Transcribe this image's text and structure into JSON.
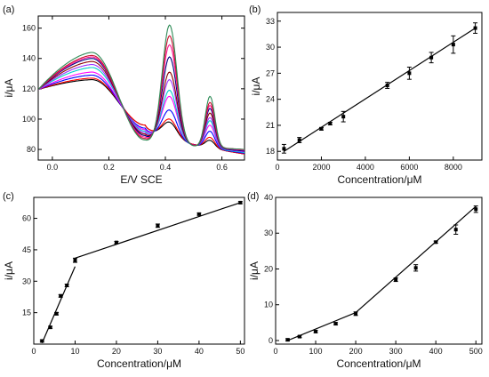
{
  "chart_data": [
    {
      "type": "line",
      "panel_label": "(a)",
      "xlabel": "E/V SCE",
      "ylabel": "i/μA",
      "xlim": [
        -0.05,
        0.68
      ],
      "ylim": [
        73,
        168
      ],
      "xticks": [
        "0.0",
        "0.2",
        "0.4",
        "0.6"
      ],
      "yticks": [
        "80",
        "100",
        "120",
        "140",
        "160"
      ],
      "series": [
        {
          "color": "#000000",
          "peak1": 126,
          "valley1": 96,
          "peak2": 98,
          "valley2": 80,
          "peak3": 86,
          "end": 77
        },
        {
          "color": "#ff0000",
          "peak1": 127,
          "valley1": 96,
          "peak2": 100,
          "valley2": 80.5,
          "peak3": 88,
          "end": 77
        },
        {
          "color": "#0000ff",
          "peak1": 129,
          "valley1": 94,
          "peak2": 106,
          "valley2": 81,
          "peak3": 92,
          "end": 77.5
        },
        {
          "color": "#ff00ff",
          "peak1": 131,
          "valley1": 93,
          "peak2": 115,
          "valley2": 81.5,
          "peak3": 96,
          "end": 78
        },
        {
          "color": "#00cccc",
          "peak1": 134,
          "valley1": 92,
          "peak2": 119,
          "valley2": 82,
          "peak3": 99,
          "end": 78
        },
        {
          "color": "#9b30ff",
          "peak1": 136,
          "valley1": 91,
          "peak2": 126,
          "valley2": 82.5,
          "peak3": 101,
          "end": 78.5
        },
        {
          "color": "#8b0000",
          "peak1": 138,
          "valley1": 90,
          "peak2": 131,
          "valley2": 83,
          "peak3": 104,
          "end": 79
        },
        {
          "color": "#000080",
          "peak1": 140,
          "valley1": 89,
          "peak2": 141,
          "valley2": 83.5,
          "peak3": 107,
          "end": 79
        },
        {
          "color": "#ff1493",
          "peak1": 141,
          "valley1": 88,
          "peak2": 149,
          "valley2": 84,
          "peak3": 109,
          "end": 79.5
        },
        {
          "color": "#c8102e",
          "peak1": 142,
          "valley1": 87,
          "peak2": 155,
          "valley2": 84,
          "peak3": 111,
          "end": 80
        },
        {
          "color": "#2e8b57",
          "peak1": 144,
          "valley1": 86,
          "peak2": 162,
          "valley2": 84.5,
          "peak3": 115,
          "end": 80
        }
      ]
    },
    {
      "type": "scatter",
      "panel_label": "(b)",
      "xlabel": "Concentration/μM",
      "ylabel": "i/μA",
      "xlim": [
        0,
        9300
      ],
      "ylim": [
        17,
        34
      ],
      "xticks": [
        "0",
        "2000",
        "4000",
        "6000",
        "8000"
      ],
      "yticks": [
        "18",
        "21",
        "24",
        "27",
        "30",
        "33"
      ],
      "points": [
        {
          "x": 300,
          "y": 18.3,
          "err": 0.5
        },
        {
          "x": 1000,
          "y": 19.3,
          "err": 0.3
        },
        {
          "x": 2000,
          "y": 20.6,
          "err": 0.15
        },
        {
          "x": 2400,
          "y": 21.2,
          "err": 0.15
        },
        {
          "x": 3000,
          "y": 22.0,
          "err": 0.6
        },
        {
          "x": 5000,
          "y": 25.6,
          "err": 0.35
        },
        {
          "x": 6000,
          "y": 27.0,
          "err": 0.7
        },
        {
          "x": 7000,
          "y": 28.8,
          "err": 0.6
        },
        {
          "x": 8000,
          "y": 30.3,
          "err": 1.0
        },
        {
          "x": 9000,
          "y": 32.2,
          "err": 0.6
        }
      ],
      "fits": [
        {
          "x": [
            300,
            9000
          ],
          "y": [
            18.0,
            32.2
          ]
        }
      ]
    },
    {
      "type": "scatter",
      "panel_label": "(c)",
      "xlabel": "Concentration/μM",
      "ylabel": "i/μA",
      "xlim": [
        0,
        51
      ],
      "ylim": [
        0,
        70
      ],
      "xticks": [
        "0",
        "10",
        "20",
        "30",
        "40",
        "50"
      ],
      "yticks": [
        "15",
        "30",
        "45",
        "60"
      ],
      "points": [
        {
          "x": 2,
          "y": 1.5,
          "err": 0.5
        },
        {
          "x": 4,
          "y": 8,
          "err": 0.5
        },
        {
          "x": 5.5,
          "y": 14.5,
          "err": 0.6
        },
        {
          "x": 6.5,
          "y": 23,
          "err": 0.6
        },
        {
          "x": 8,
          "y": 28,
          "err": 0.6
        },
        {
          "x": 10,
          "y": 40,
          "err": 1.0
        },
        {
          "x": 20,
          "y": 48.5,
          "err": 0.5
        },
        {
          "x": 30,
          "y": 56.5,
          "err": 0.8
        },
        {
          "x": 40,
          "y": 62,
          "err": 0.5
        },
        {
          "x": 50,
          "y": 67.5,
          "err": 0.5
        }
      ],
      "fits": [
        {
          "x": [
            2,
            10
          ],
          "y": [
            0.5,
            37
          ]
        },
        {
          "x": [
            10,
            50
          ],
          "y": [
            41,
            67.5
          ]
        }
      ]
    },
    {
      "type": "scatter",
      "panel_label": "(d)",
      "xlabel": "Concentration/μM",
      "ylabel": "i/μA",
      "xlim": [
        0,
        515
      ],
      "ylim": [
        -1,
        40
      ],
      "xticks": [
        "0",
        "100",
        "200",
        "300",
        "400",
        "500"
      ],
      "yticks": [
        "0",
        "10",
        "20",
        "30",
        "40"
      ],
      "points": [
        {
          "x": 30,
          "y": 0.2,
          "err": 0.3
        },
        {
          "x": 60,
          "y": 1.1,
          "err": 0.3
        },
        {
          "x": 100,
          "y": 2.5,
          "err": 0.3
        },
        {
          "x": 150,
          "y": 4.7,
          "err": 0.3
        },
        {
          "x": 200,
          "y": 7.5,
          "err": 0.5
        },
        {
          "x": 300,
          "y": 17.0,
          "err": 0.5
        },
        {
          "x": 350,
          "y": 20.3,
          "err": 0.9
        },
        {
          "x": 400,
          "y": 27.5,
          "err": 0.3
        },
        {
          "x": 450,
          "y": 31.0,
          "err": 1.3
        },
        {
          "x": 500,
          "y": 36.7,
          "err": 0.9
        }
      ],
      "fits": [
        {
          "x": [
            30,
            200
          ],
          "y": [
            0,
            7.8
          ]
        },
        {
          "x": [
            200,
            500
          ],
          "y": [
            7.8,
            37.5
          ]
        }
      ]
    }
  ]
}
